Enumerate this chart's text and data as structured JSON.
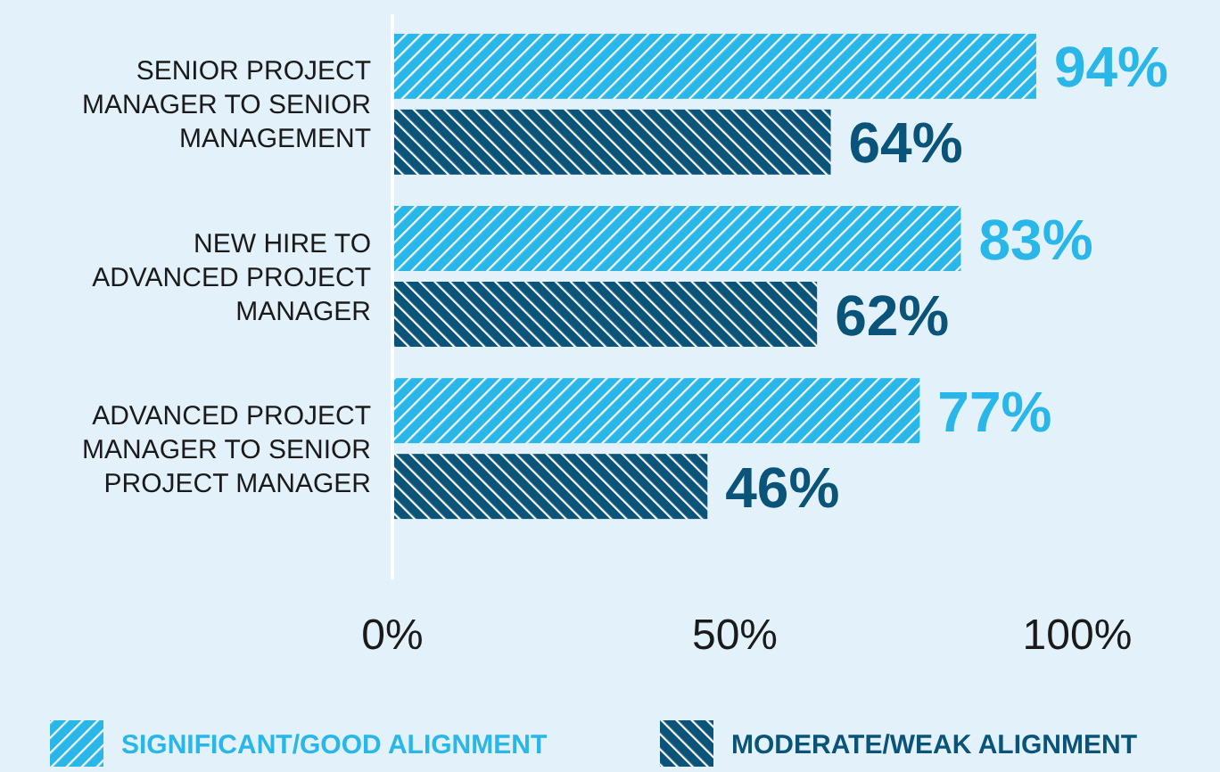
{
  "chart_data": {
    "type": "bar",
    "orientation": "horizontal",
    "categories": [
      "SENIOR PROJECT MANAGER TO SENIOR MANAGEMENT",
      "NEW HIRE TO ADVANCED PROJECT MANAGER",
      "ADVANCED PROJECT MANAGER TO SENIOR PROJECT MANAGER"
    ],
    "series": [
      {
        "name": "SIGNIFICANT/GOOD ALIGNMENT",
        "color": "#29b6e8",
        "values": [
          94,
          83,
          77
        ],
        "value_labels": [
          "94%",
          "83%",
          "77%"
        ]
      },
      {
        "name": "MODERATE/WEAK ALIGNMENT",
        "color": "#0b5479",
        "values": [
          64,
          62,
          46
        ],
        "value_labels": [
          "64%",
          "62%",
          "46%"
        ]
      }
    ],
    "xlim": [
      0,
      100
    ],
    "xticks": [
      {
        "value": 0,
        "label": "0%"
      },
      {
        "value": 50,
        "label": "50%"
      },
      {
        "value": 100,
        "label": "100%"
      }
    ],
    "grid": false,
    "legend": "bottom"
  }
}
